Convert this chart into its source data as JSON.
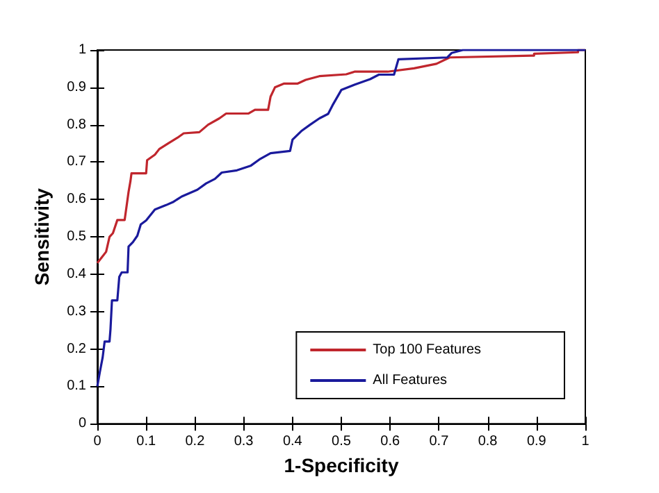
{
  "chart_data": {
    "type": "line",
    "xlabel": "1-Specificity",
    "ylabel": "Sensitivity",
    "xlim": [
      0,
      1
    ],
    "ylim": [
      0,
      1
    ],
    "xticks": [
      0,
      0.1,
      0.2,
      0.3,
      0.4,
      0.5,
      0.6,
      0.7,
      0.8,
      0.9,
      1
    ],
    "yticks": [
      0,
      0.1,
      0.2,
      0.3,
      0.4,
      0.5,
      0.6,
      0.7,
      0.8,
      0.9,
      1
    ],
    "grid": false,
    "legend": "bottom right",
    "marker": "none",
    "line_style": "solid",
    "series": [
      {
        "name": "Top 100 Features",
        "color": "#c0262d",
        "x": [
          0,
          0.009,
          0.018,
          0.025,
          0.032,
          0.041,
          0.056,
          0.064,
          0.068,
          0.07,
          0.1,
          0.102,
          0.118,
          0.127,
          0.145,
          0.164,
          0.177,
          0.209,
          0.227,
          0.25,
          0.264,
          0.31,
          0.323,
          0.35,
          0.355,
          0.364,
          0.382,
          0.41,
          0.427,
          0.455,
          0.51,
          0.527,
          0.595,
          0.649,
          0.695,
          0.722,
          0.895,
          0.895,
          0.985,
          0.985,
          1
        ],
        "values": [
          0.43,
          0.445,
          0.46,
          0.5,
          0.51,
          0.545,
          0.545,
          0.62,
          0.65,
          0.67,
          0.67,
          0.705,
          0.72,
          0.735,
          0.75,
          0.765,
          0.777,
          0.78,
          0.8,
          0.817,
          0.83,
          0.83,
          0.84,
          0.84,
          0.875,
          0.9,
          0.91,
          0.91,
          0.92,
          0.93,
          0.935,
          0.942,
          0.942,
          0.951,
          0.963,
          0.98,
          0.985,
          0.99,
          0.994,
          1,
          1
        ]
      },
      {
        "name": "All Features",
        "color": "#1a1a9c",
        "x": [
          0,
          0.005,
          0.011,
          0.015,
          0.025,
          0.027,
          0.03,
          0.041,
          0.045,
          0.05,
          0.062,
          0.064,
          0.073,
          0.082,
          0.089,
          0.1,
          0.118,
          0.141,
          0.155,
          0.173,
          0.205,
          0.223,
          0.241,
          0.255,
          0.286,
          0.314,
          0.332,
          0.355,
          0.395,
          0.4,
          0.418,
          0.436,
          0.455,
          0.473,
          0.482,
          0.5,
          0.527,
          0.559,
          0.577,
          0.608,
          0.617,
          0.717,
          0.726,
          0.749,
          1
        ],
        "values": [
          0.1,
          0.137,
          0.178,
          0.22,
          0.22,
          0.253,
          0.33,
          0.33,
          0.393,
          0.405,
          0.405,
          0.474,
          0.486,
          0.503,
          0.533,
          0.544,
          0.573,
          0.585,
          0.593,
          0.608,
          0.626,
          0.643,
          0.655,
          0.672,
          0.678,
          0.69,
          0.707,
          0.724,
          0.73,
          0.76,
          0.783,
          0.8,
          0.817,
          0.829,
          0.852,
          0.893,
          0.907,
          0.922,
          0.934,
          0.934,
          0.975,
          0.98,
          0.992,
          1,
          1
        ]
      }
    ]
  }
}
